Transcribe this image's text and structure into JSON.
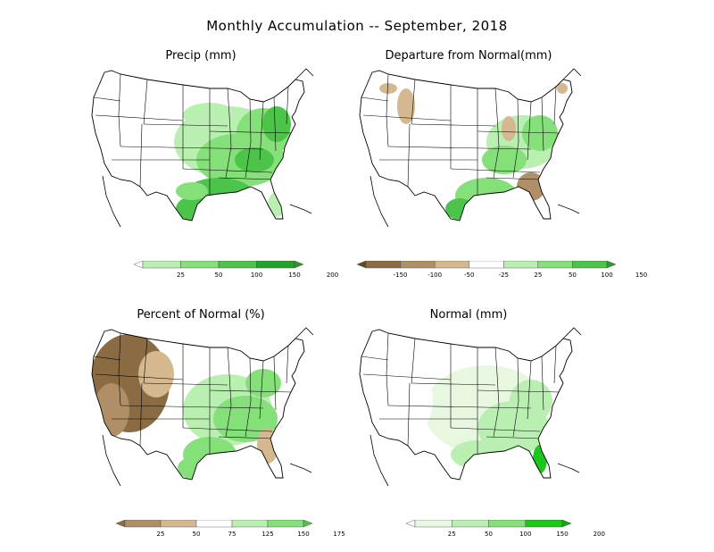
{
  "title": "Monthly Accumulation -- September, 2018",
  "colors": {
    "outline": "#000000",
    "green_lightest": "#e8f8e0",
    "green_light": "#b9efb0",
    "green_mid": "#86e07a",
    "green_dark": "#4cc44a",
    "green_darkest": "#22a228",
    "green_forest": "#2f9530",
    "brown_light": "#d5b88f",
    "brown_mid": "#b08f66",
    "brown_dark": "#8a6b43",
    "brown_darkest": "#5e4a2a",
    "bright_green": "#19c819"
  },
  "panels": [
    {
      "id": "precip",
      "title": "Precip (mm)",
      "legend": {
        "ticks": [
          "25",
          "50",
          "100",
          "150",
          "200"
        ],
        "has_left_arrow": false,
        "colors": [
          "#ffffff",
          "#b9efb0",
          "#86e07a",
          "#4cc44a",
          "#22a228",
          "#2f9530"
        ]
      }
    },
    {
      "id": "departure",
      "title": "Departure from Normal(mm)",
      "legend": {
        "ticks": [
          "-150",
          "-100",
          "-50",
          "-25",
          "25",
          "50",
          "100",
          "150"
        ],
        "has_left_arrow": true,
        "colors": [
          "#5e4a2a",
          "#8a6b43",
          "#b08f66",
          "#d5b88f",
          "#ffffff",
          "#b9efb0",
          "#86e07a",
          "#4cc44a",
          "#22a228"
        ]
      }
    },
    {
      "id": "percent",
      "title": "Percent of Normal (%)",
      "legend": {
        "ticks": [
          "25",
          "50",
          "75",
          "125",
          "150",
          "175"
        ],
        "has_left_arrow": true,
        "colors": [
          "#8a6b43",
          "#b08f66",
          "#d5b88f",
          "#ffffff",
          "#b9efb0",
          "#86e07a",
          "#4cc44a"
        ]
      }
    },
    {
      "id": "normal",
      "title": "Normal (mm)",
      "legend": {
        "ticks": [
          "25",
          "50",
          "100",
          "150",
          "200"
        ],
        "has_left_arrow": false,
        "colors": [
          "#ffffff",
          "#e8f8e0",
          "#b9efb0",
          "#86e07a",
          "#19c819",
          "#0fa80f"
        ]
      }
    }
  ]
}
